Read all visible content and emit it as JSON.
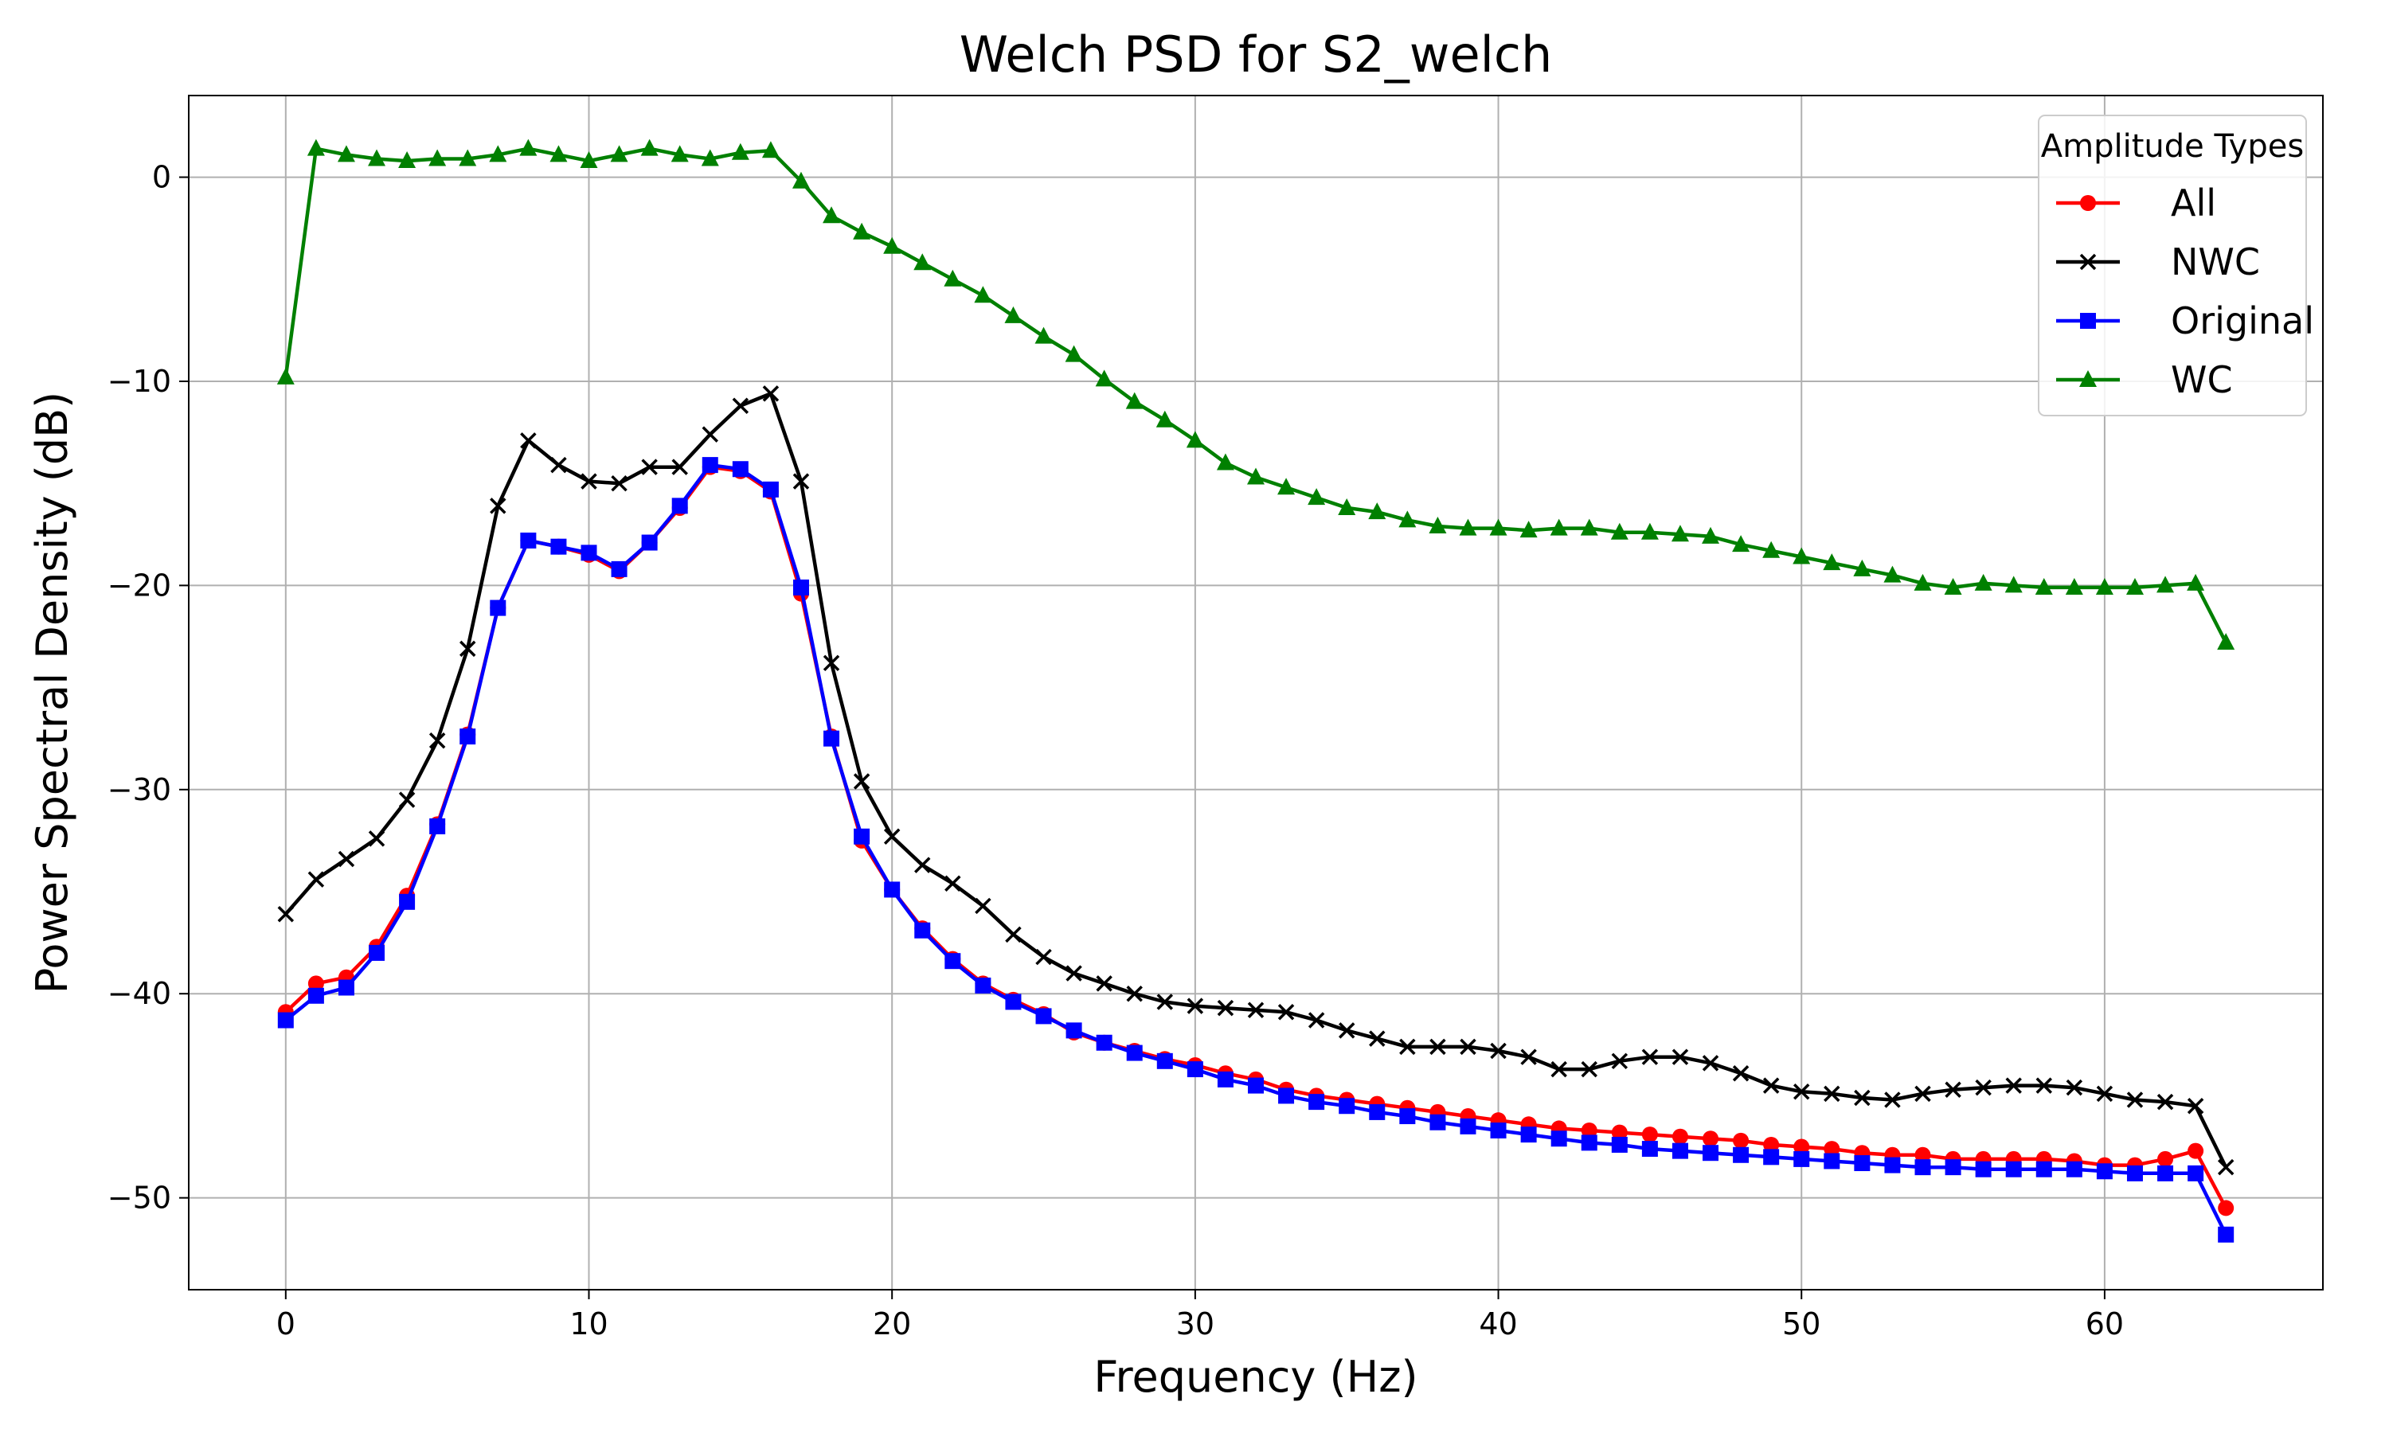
{
  "chart_data": {
    "type": "line",
    "title": "Welch PSD for S2_welch",
    "xlabel": "Frequency (Hz)",
    "ylabel": "Power Spectral Density (dB)",
    "xlim": [
      -3.2,
      67.2
    ],
    "ylim": [
      -54.5,
      4
    ],
    "xticks": [
      0,
      10,
      20,
      30,
      40,
      50,
      60
    ],
    "yticks": [
      0,
      -10,
      -20,
      -30,
      -40,
      -50
    ],
    "grid": true,
    "legend": {
      "title": "Amplitude Types",
      "position": "top-right"
    },
    "x": [
      0,
      1,
      2,
      3,
      4,
      5,
      6,
      7,
      8,
      9,
      10,
      11,
      12,
      13,
      14,
      15,
      16,
      17,
      18,
      19,
      20,
      21,
      22,
      23,
      24,
      25,
      26,
      27,
      28,
      29,
      30,
      31,
      32,
      33,
      34,
      35,
      36,
      37,
      38,
      39,
      40,
      41,
      42,
      43,
      44,
      45,
      46,
      47,
      48,
      49,
      50,
      51,
      52,
      53,
      54,
      55,
      56,
      57,
      58,
      59,
      60,
      61,
      62,
      63,
      64
    ],
    "series": [
      {
        "name": "All",
        "color": "#ff0000",
        "marker": "circle",
        "values": [
          -40.9,
          -39.5,
          -39.2,
          -37.7,
          -35.2,
          -31.7,
          -27.3,
          -21.1,
          -17.8,
          -18.1,
          -18.5,
          -19.3,
          -17.9,
          -16.2,
          -14.2,
          -14.4,
          -15.4,
          -20.4,
          -27.4,
          -32.5,
          -34.9,
          -36.8,
          -38.3,
          -39.5,
          -40.3,
          -41.0,
          -41.9,
          -42.4,
          -42.8,
          -43.2,
          -43.5,
          -43.9,
          -44.2,
          -44.7,
          -45.0,
          -45.2,
          -45.4,
          -45.6,
          -45.8,
          -46.0,
          -46.2,
          -46.4,
          -46.6,
          -46.7,
          -46.8,
          -46.9,
          -47.0,
          -47.1,
          -47.2,
          -47.4,
          -47.5,
          -47.6,
          -47.8,
          -47.9,
          -47.9,
          -48.1,
          -48.1,
          -48.1,
          -48.1,
          -48.2,
          -48.4,
          -48.4,
          -48.1,
          -47.7,
          -50.5
        ]
      },
      {
        "name": "NWC",
        "color": "#000000",
        "marker": "x",
        "values": [
          -36.1,
          -34.4,
          -33.4,
          -32.4,
          -30.5,
          -27.6,
          -23.1,
          -16.1,
          -12.9,
          -14.1,
          -14.9,
          -15.0,
          -14.2,
          -14.2,
          -12.6,
          -11.2,
          -10.6,
          -14.9,
          -23.8,
          -29.6,
          -32.3,
          -33.7,
          -34.6,
          -35.7,
          -37.1,
          -38.2,
          -39.0,
          -39.5,
          -40.0,
          -40.4,
          -40.6,
          -40.7,
          -40.8,
          -40.9,
          -41.3,
          -41.8,
          -42.2,
          -42.6,
          -42.6,
          -42.6,
          -42.8,
          -43.1,
          -43.7,
          -43.7,
          -43.3,
          -43.1,
          -43.1,
          -43.4,
          -43.9,
          -44.5,
          -44.8,
          -44.9,
          -45.1,
          -45.2,
          -44.9,
          -44.7,
          -44.6,
          -44.5,
          -44.5,
          -44.6,
          -44.9,
          -45.2,
          -45.3,
          -45.5,
          -48.5
        ]
      },
      {
        "name": "Original",
        "color": "#0000ff",
        "marker": "square",
        "values": [
          -41.3,
          -40.1,
          -39.7,
          -38.0,
          -35.5,
          -31.8,
          -27.4,
          -21.1,
          -17.8,
          -18.1,
          -18.4,
          -19.2,
          -17.9,
          -16.1,
          -14.1,
          -14.3,
          -15.3,
          -20.1,
          -27.5,
          -32.3,
          -34.9,
          -36.9,
          -38.4,
          -39.6,
          -40.4,
          -41.1,
          -41.8,
          -42.4,
          -42.9,
          -43.3,
          -43.7,
          -44.2,
          -44.5,
          -45.0,
          -45.3,
          -45.5,
          -45.8,
          -46.0,
          -46.3,
          -46.5,
          -46.7,
          -46.9,
          -47.1,
          -47.3,
          -47.4,
          -47.6,
          -47.7,
          -47.8,
          -47.9,
          -48.0,
          -48.1,
          -48.2,
          -48.3,
          -48.4,
          -48.5,
          -48.5,
          -48.6,
          -48.6,
          -48.6,
          -48.6,
          -48.7,
          -48.8,
          -48.8,
          -48.8,
          -51.8
        ]
      },
      {
        "name": "WC",
        "color": "#008000",
        "marker": "triangle",
        "values": [
          -9.8,
          1.4,
          1.1,
          0.9,
          0.8,
          0.9,
          0.9,
          1.1,
          1.4,
          1.1,
          0.8,
          1.1,
          1.4,
          1.1,
          0.9,
          1.2,
          1.3,
          -0.2,
          -1.9,
          -2.7,
          -3.4,
          -4.2,
          -5.0,
          -5.8,
          -6.8,
          -7.8,
          -8.7,
          -9.9,
          -11.0,
          -11.9,
          -12.9,
          -14.0,
          -14.7,
          -15.2,
          -15.7,
          -16.2,
          -16.4,
          -16.8,
          -17.1,
          -17.2,
          -17.2,
          -17.3,
          -17.2,
          -17.2,
          -17.4,
          -17.4,
          -17.5,
          -17.6,
          -18.0,
          -18.3,
          -18.6,
          -18.9,
          -19.2,
          -19.5,
          -19.9,
          -20.1,
          -19.9,
          -20.0,
          -20.1,
          -20.1,
          -20.1,
          -20.1,
          -20.0,
          -19.9,
          -22.8
        ]
      }
    ]
  }
}
